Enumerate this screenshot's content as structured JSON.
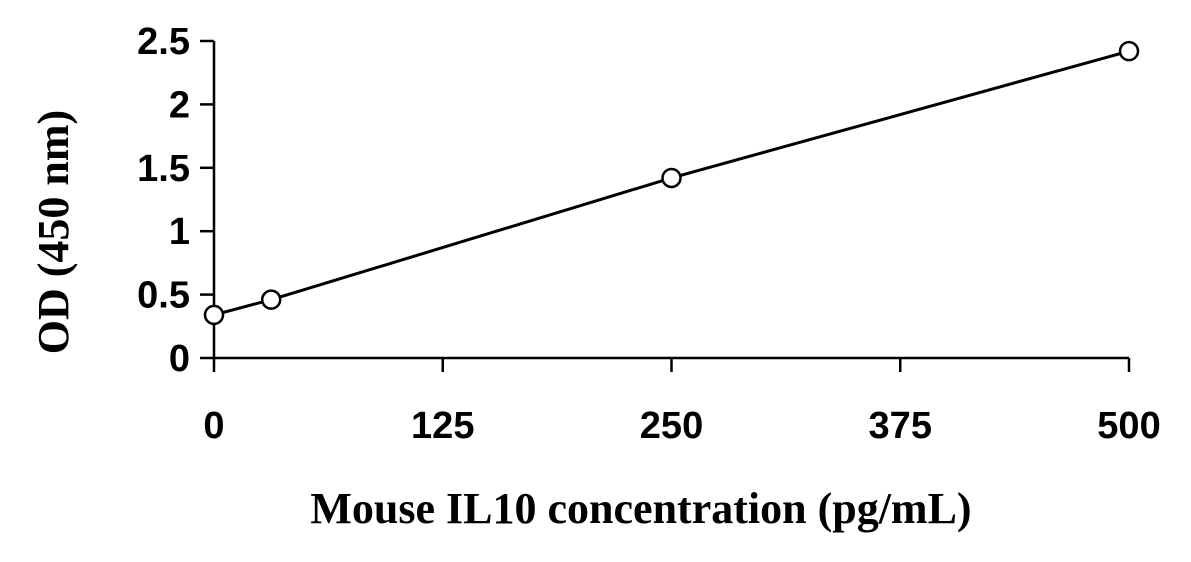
{
  "chart_data": {
    "type": "line",
    "title": "",
    "xlabel": "Mouse IL10 concentration (pg/mL)",
    "ylabel": "OD (450 nm)",
    "xlim": [
      0,
      500
    ],
    "ylim": [
      0,
      2.5
    ],
    "x_ticks": [
      "0",
      "125",
      "250",
      "375",
      "500"
    ],
    "y_ticks": [
      "0",
      "0.5",
      "1",
      "1.5",
      "2",
      "2.5"
    ],
    "grid": false,
    "legend": "none",
    "series": [
      {
        "x": [
          0,
          31.25,
          250,
          500
        ],
        "y": [
          0.34,
          0.46,
          1.42,
          2.42
        ],
        "marker": "open-circle",
        "color": "#000000"
      }
    ]
  }
}
